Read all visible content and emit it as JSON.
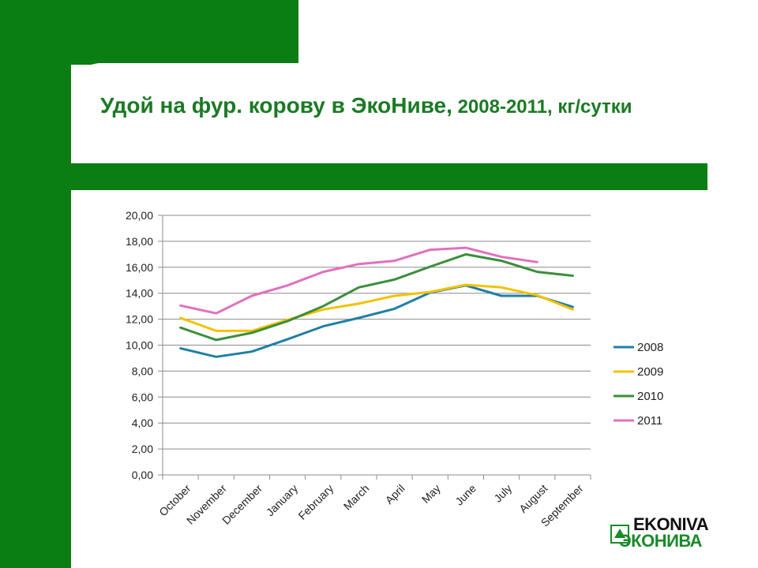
{
  "title": {
    "main": "Удой на фур. корову в ЭкоНиве,",
    "sub": " 2008-2011, кг/сутки"
  },
  "logo": {
    "line1": "EKONIVA",
    "line2": "ЭКОНИВА",
    "colors": {
      "text": "#111111",
      "accent": "#1a8a2a"
    }
  },
  "colors": {
    "brand_green": "#0a7d13",
    "title": "#1a7a24"
  },
  "chart_data": {
    "type": "line",
    "categories": [
      "October",
      "November",
      "December",
      "January",
      "February",
      "March",
      "April",
      "May",
      "June",
      "July",
      "August",
      "September"
    ],
    "ylim": [
      0,
      20
    ],
    "yticks": [
      "0,00",
      "2,00",
      "4,00",
      "6,00",
      "8,00",
      "10,00",
      "12,00",
      "14,00",
      "16,00",
      "18,00",
      "20,00"
    ],
    "grid": true,
    "legend_position": "right",
    "series": [
      {
        "name": "2008",
        "color": "#1f7fa6",
        "values": [
          9.75,
          9.1,
          9.5,
          10.45,
          11.45,
          12.1,
          12.8,
          14.05,
          14.6,
          13.8,
          13.8,
          12.95
        ]
      },
      {
        "name": "2009",
        "color": "#f2c200",
        "values": [
          12.1,
          11.1,
          11.1,
          11.95,
          12.75,
          13.2,
          13.8,
          14.1,
          14.65,
          14.45,
          13.85,
          12.75
        ]
      },
      {
        "name": "2010",
        "color": "#3a8f3a",
        "values": [
          11.35,
          10.4,
          10.95,
          11.85,
          13.0,
          14.45,
          15.05,
          16.05,
          17.0,
          16.5,
          15.65,
          15.35
        ]
      },
      {
        "name": "2011",
        "color": "#e070c0",
        "values": [
          13.05,
          12.45,
          13.8,
          14.6,
          15.65,
          16.25,
          16.5,
          17.35,
          17.5,
          16.8,
          16.4,
          null
        ]
      }
    ]
  }
}
